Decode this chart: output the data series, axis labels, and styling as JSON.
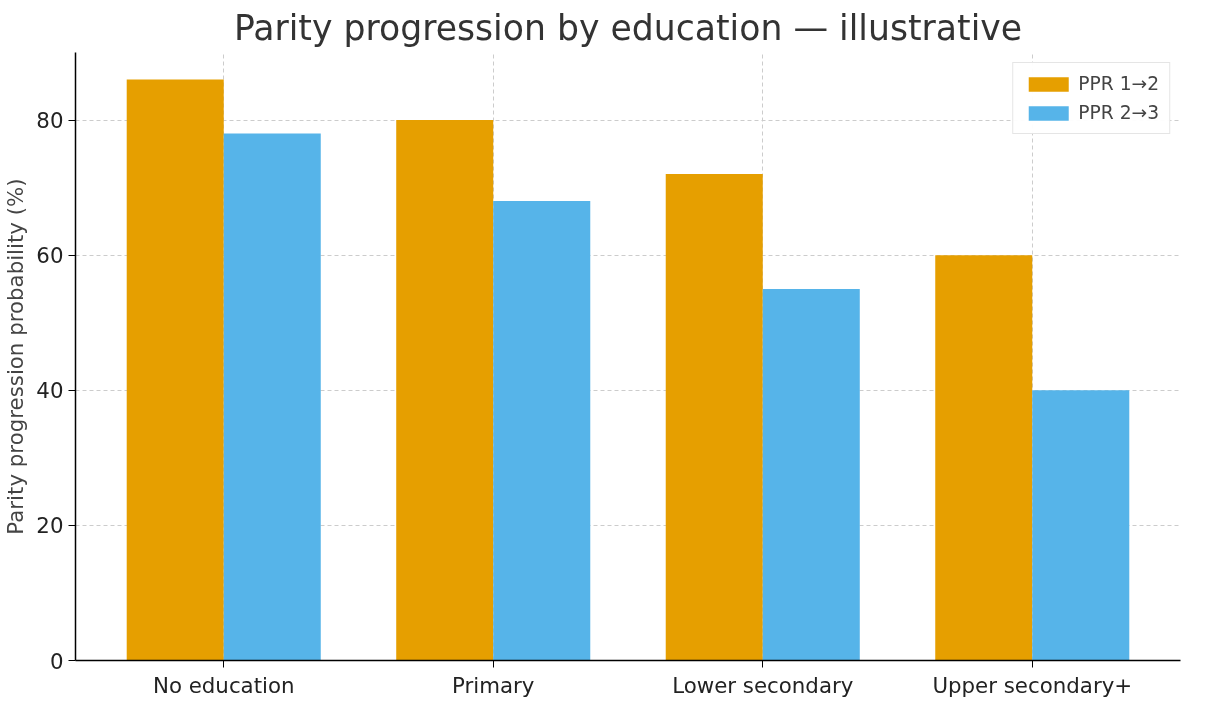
{
  "chart_data": {
    "type": "bar",
    "title": "Parity progression by education — illustrative",
    "ylabel": "Parity progression probability (%)",
    "categories": [
      "No education",
      "Primary",
      "Lower secondary",
      "Upper secondary+"
    ],
    "series": [
      {
        "name": "PPR 1→2",
        "color": "#e69f00",
        "values": [
          86,
          80,
          72,
          60
        ]
      },
      {
        "name": "PPR 2→3",
        "color": "#56b4e9",
        "values": [
          78,
          68,
          55,
          40
        ]
      }
    ],
    "ylim": [
      0,
      90
    ],
    "yticks": [
      0,
      20,
      40,
      60,
      80
    ],
    "grid": true,
    "legend": "top right"
  }
}
